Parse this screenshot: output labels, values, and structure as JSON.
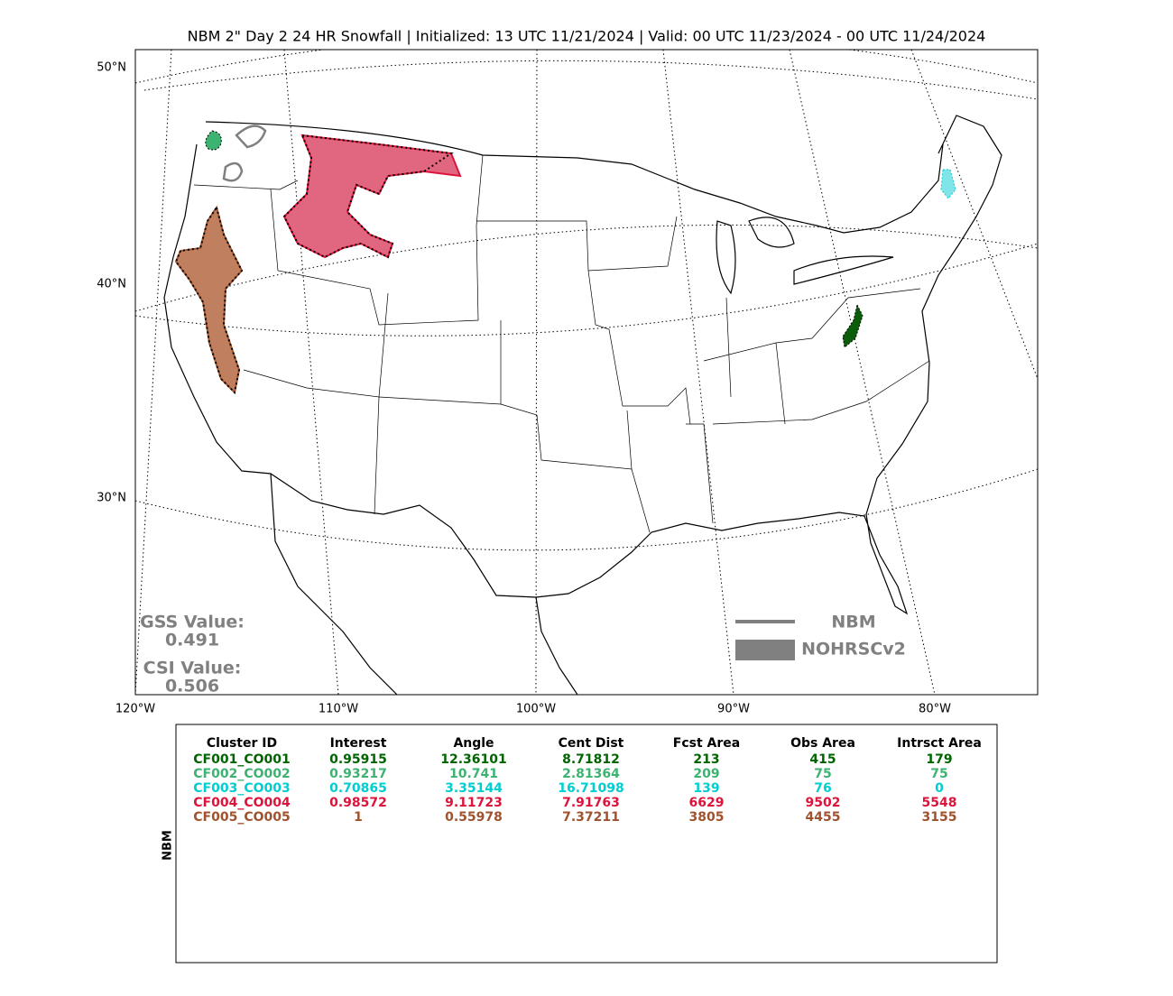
{
  "title": "NBM 2\" Day 2 24 HR Snowfall | Initialized: 13 UTC 11/21/2024 | Valid: 00 UTC 11/23/2024 - 00 UTC 11/24/2024",
  "map": {
    "lat_labels": [
      "50°N",
      "40°N",
      "30°N"
    ],
    "lon_labels": [
      "120°W",
      "110°W",
      "100°W",
      "90°W",
      "80°W"
    ]
  },
  "scores": {
    "gss_label": "GSS Value:",
    "gss": 0.491,
    "csi_label": "CSI Value:",
    "csi": 0.506
  },
  "legend": {
    "forecast": "NBM",
    "observed": "NOHRSCv2"
  },
  "table": {
    "side_label": "NBM",
    "columns": [
      "Cluster ID",
      "Interest",
      "Angle",
      "Cent Dist",
      "Fcst Area",
      "Obs Area",
      "Intrsct Area"
    ],
    "row_colors": [
      "#006400",
      "#3cb371",
      "#00ced1",
      "#dc143c",
      "#a0522d"
    ],
    "rows": [
      [
        "CF001_CO001",
        0.95915,
        12.36101,
        8.71812,
        213,
        415,
        179
      ],
      [
        "CF002_CO002",
        0.93217,
        10.741,
        2.81364,
        209,
        75,
        75
      ],
      [
        "CF003_CO003",
        0.70865,
        3.35144,
        16.71098,
        139,
        76,
        0
      ],
      [
        "CF004_CO004",
        0.98572,
        9.11723,
        7.91763,
        6629,
        9502,
        5548
      ],
      [
        "CF005_CO005",
        1,
        0.55978,
        7.37211,
        3805,
        4455,
        3155
      ]
    ]
  }
}
